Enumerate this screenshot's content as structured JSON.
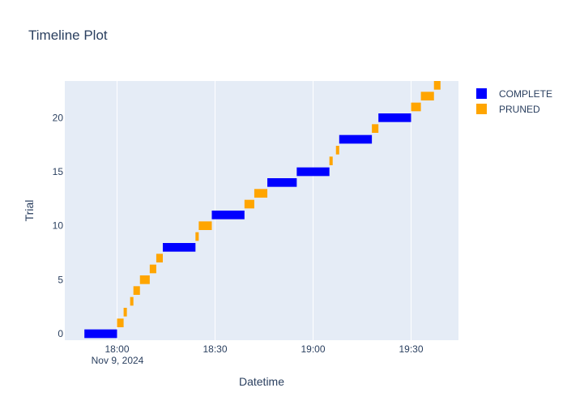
{
  "chart_data": {
    "type": "timeline",
    "title": "Timeline Plot",
    "xlabel": "Datetime",
    "ylabel": "Trial",
    "x_date_label": "Nov 9, 2024",
    "x_ticks": [
      "18:00",
      "18:30",
      "19:00",
      "19:30"
    ],
    "x_tick_minutes": [
      0,
      30,
      60,
      90
    ],
    "x_range_minutes": [
      -16,
      104.5
    ],
    "y_ticks": [
      0,
      5,
      10,
      15,
      20
    ],
    "y_range": [
      -0.6,
      23.4
    ],
    "grid": true,
    "legend_position": "right",
    "series": [
      {
        "name": "COMPLETE",
        "color": "#0000ff",
        "bars": [
          {
            "trial": 0,
            "start": "17:50",
            "end": "18:00"
          },
          {
            "trial": 8,
            "start": "18:14",
            "end": "18:24"
          },
          {
            "trial": 11,
            "start": "18:29",
            "end": "18:39"
          },
          {
            "trial": 14,
            "start": "18:46",
            "end": "18:55"
          },
          {
            "trial": 15,
            "start": "18:55",
            "end": "19:05"
          },
          {
            "trial": 18,
            "start": "19:08",
            "end": "19:18"
          },
          {
            "trial": 20,
            "start": "19:20",
            "end": "19:30"
          }
        ]
      },
      {
        "name": "PRUNED",
        "color": "#ffa500",
        "bars": [
          {
            "trial": 1,
            "start": "18:00",
            "end": "18:02"
          },
          {
            "trial": 2,
            "start": "18:02",
            "end": "18:03"
          },
          {
            "trial": 3,
            "start": "18:04",
            "end": "18:05"
          },
          {
            "trial": 4,
            "start": "18:05",
            "end": "18:07"
          },
          {
            "trial": 5,
            "start": "18:07",
            "end": "18:10"
          },
          {
            "trial": 6,
            "start": "18:10",
            "end": "18:12"
          },
          {
            "trial": 7,
            "start": "18:12",
            "end": "18:14"
          },
          {
            "trial": 9,
            "start": "18:24",
            "end": "18:25"
          },
          {
            "trial": 10,
            "start": "18:25",
            "end": "18:29"
          },
          {
            "trial": 12,
            "start": "18:39",
            "end": "18:42"
          },
          {
            "trial": 13,
            "start": "18:42",
            "end": "18:46"
          },
          {
            "trial": 16,
            "start": "19:05",
            "end": "19:06"
          },
          {
            "trial": 17,
            "start": "19:07",
            "end": "19:08"
          },
          {
            "trial": 19,
            "start": "19:18",
            "end": "19:20"
          },
          {
            "trial": 21,
            "start": "19:30",
            "end": "19:33"
          },
          {
            "trial": 22,
            "start": "19:33",
            "end": "19:37"
          },
          {
            "trial": 23,
            "start": "19:37",
            "end": "19:39"
          }
        ]
      }
    ]
  }
}
